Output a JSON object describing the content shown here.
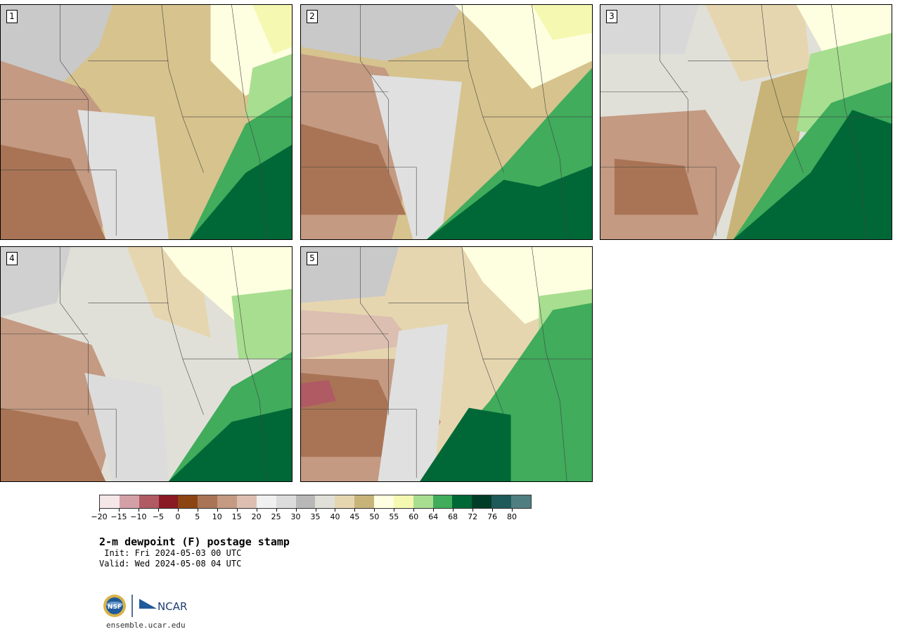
{
  "panels": [
    {
      "label": "1"
    },
    {
      "label": "2"
    },
    {
      "label": "3"
    },
    {
      "label": "4"
    },
    {
      "label": "5"
    }
  ],
  "colorbar": {
    "colors": [
      "#f5e6e8",
      "#d4a0a7",
      "#b05a64",
      "#8a1a24",
      "#8b4513",
      "#a97455",
      "#c49a82",
      "#dcbfb0",
      "#f0f0f0",
      "#dcdcdc",
      "#b8b8b8",
      "#e0e0d8",
      "#e6d6b0",
      "#c8b478",
      "#fefee0",
      "#f5f8b0",
      "#a8de90",
      "#40ac5c",
      "#006837",
      "#003d28",
      "#1f5a5a",
      "#4f7f80"
    ],
    "ticks": [
      "−20",
      "−15",
      "−10",
      "−5",
      "0",
      "5",
      "10",
      "15",
      "20",
      "25",
      "30",
      "35",
      "40",
      "45",
      "50",
      "55",
      "60",
      "64",
      "68",
      "72",
      "76",
      "80"
    ]
  },
  "title": "2-m dewpoint (F) postage stamp",
  "init": " Init: Fri 2024-05-03 00 UTC",
  "valid": "Valid: Wed 2024-05-08 04 UTC",
  "logo": {
    "nsf_text": "NSF",
    "ncar_text": "NCAR"
  },
  "site": "ensemble.ucar.edu"
}
